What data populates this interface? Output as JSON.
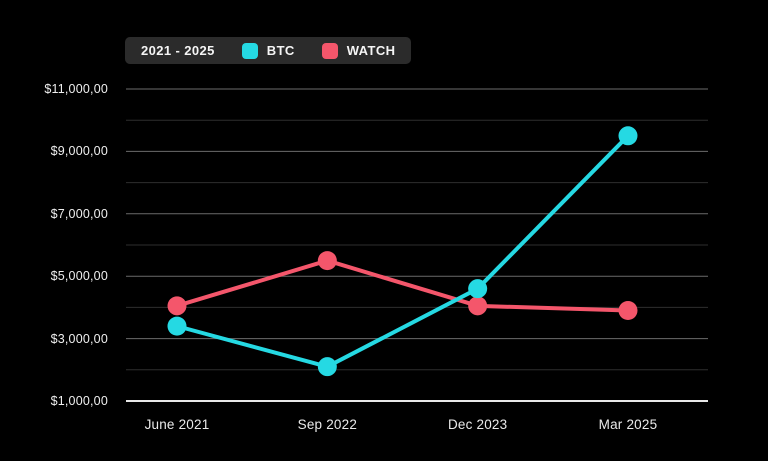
{
  "legend": {
    "period_label": "2021 - 2025"
  },
  "colors": {
    "background": "#000000",
    "legend_background": "#2b2b2b",
    "label_text": "#efefef",
    "grid_major": "#6b6b6b",
    "grid_minor": "#2e2e2e",
    "axis_baseline": "#e8e8e8",
    "btc": "#25d9e3",
    "watch": "#f4566b"
  },
  "chart_data": {
    "type": "line",
    "title": "",
    "categories": [
      "June 2021",
      "Sep 2022",
      "Dec 2023",
      "Mar 2025"
    ],
    "series": [
      {
        "name": "BTC",
        "color": "#25d9e3",
        "values": [
          3400,
          2100,
          4600,
          9500
        ]
      },
      {
        "name": "WATCH",
        "color": "#f4566b",
        "values": [
          4050,
          5500,
          4050,
          3900
        ]
      }
    ],
    "ylim": [
      1000,
      11000
    ],
    "minor_grid_step": 1000,
    "y_ticks": [
      {
        "value": 1000,
        "label": "$1,000,00"
      },
      {
        "value": 3000,
        "label": "$3,000,00"
      },
      {
        "value": 5000,
        "label": "$5,000,00"
      },
      {
        "value": 7000,
        "label": "$7,000,00"
      },
      {
        "value": 9000,
        "label": "$9,000,00"
      },
      {
        "value": 11000,
        "label": "$11,000,00"
      }
    ],
    "grid": "horizontal",
    "legend_position": "top-left",
    "marker": "circle"
  }
}
